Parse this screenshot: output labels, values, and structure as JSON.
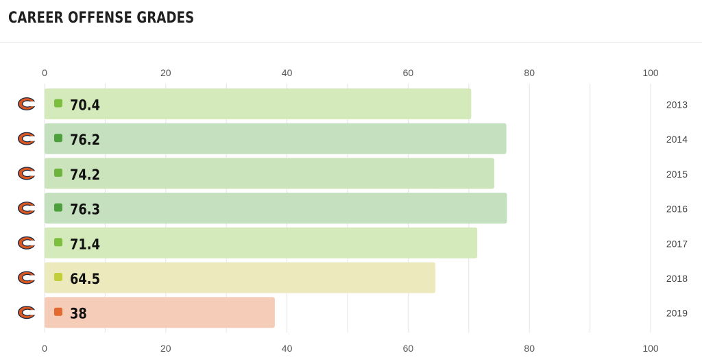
{
  "header": {
    "title": "CAREER OFFENSE GRADES"
  },
  "team_logo_icon": "chicago-bears-c-logo",
  "colors": {
    "grade_high": "#7cbf3f",
    "grade_good": "#4e9f3d",
    "grade_mid": "#c3cf3a",
    "grade_low": "#e2692f"
  },
  "chart_data": {
    "type": "bar",
    "orientation": "horizontal",
    "title": "CAREER OFFENSE GRADES",
    "xlabel": "",
    "ylabel": "",
    "xlim": [
      0,
      100
    ],
    "x_ticks": [
      0,
      20,
      40,
      60,
      80,
      100
    ],
    "categories": [
      "2013",
      "2014",
      "2015",
      "2016",
      "2017",
      "2018",
      "2019"
    ],
    "values": [
      70.4,
      76.2,
      74.2,
      76.3,
      71.4,
      64.5,
      38
    ],
    "value_labels": [
      "70.4",
      "76.2",
      "74.2",
      "76.3",
      "71.4",
      "64.5",
      "38"
    ],
    "bar_colors": [
      "#d5eabb",
      "#c4e0be",
      "#cbe4bc",
      "#c4e0be",
      "#d5eabb",
      "#eceabd",
      "#f5ccb8"
    ],
    "marker_colors": [
      "#7cbf3f",
      "#4e9f3d",
      "#6fb33f",
      "#4e9f3d",
      "#7cbf3f",
      "#c3cf3a",
      "#e2692f"
    ],
    "grid": true,
    "axis_labels_position": "top-and-bottom"
  }
}
